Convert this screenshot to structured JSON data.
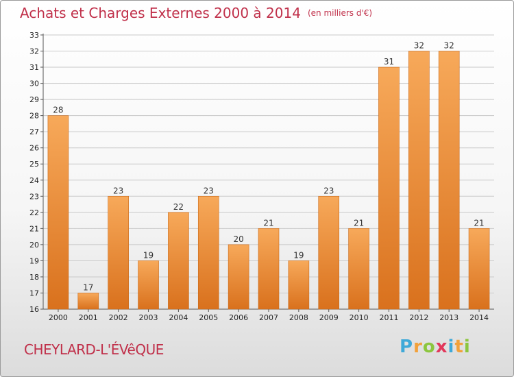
{
  "title": "Achats et Charges Externes 2000 à 2014",
  "unit": "(en milliers d'€)",
  "commune": "CHEYLARD-L'ÉVêQUE",
  "logo": {
    "letters": [
      "P",
      "r",
      "o",
      "x",
      "i",
      "t",
      "i"
    ],
    "colors": [
      "#3fa9d8",
      "#f2a13a",
      "#8cc63e",
      "#e2385b",
      "#3fa9d8",
      "#f2a13a",
      "#8cc63e"
    ]
  },
  "colors": {
    "bar_light": "#f7a95a",
    "bar_dark": "#d9711d",
    "grid": "#c8c8c8",
    "title": "#c0304a"
  },
  "chart_data": {
    "type": "bar",
    "categories": [
      "2000",
      "2001",
      "2002",
      "2003",
      "2004",
      "2005",
      "2006",
      "2007",
      "2008",
      "2009",
      "2010",
      "2011",
      "2012",
      "2013",
      "2014"
    ],
    "values": [
      28,
      17,
      23,
      19,
      22,
      23,
      20,
      21,
      19,
      23,
      21,
      31,
      32,
      32,
      21
    ],
    "ylim": [
      16,
      33
    ],
    "yticks": [
      16,
      17,
      18,
      19,
      20,
      21,
      22,
      23,
      24,
      25,
      26,
      27,
      28,
      29,
      30,
      31,
      32,
      33
    ],
    "grid": true,
    "title": "Achats et Charges Externes 2000 à 2014",
    "xlabel": "",
    "ylabel": ""
  }
}
